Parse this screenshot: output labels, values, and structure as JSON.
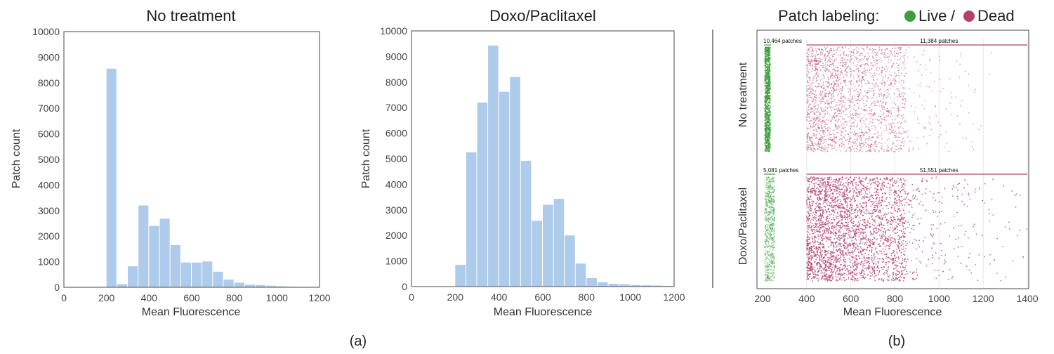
{
  "figure": {
    "caption_a": "(a)",
    "caption_b": "(b)"
  },
  "chart_data": [
    {
      "type": "bar",
      "title": "No treatment",
      "xlabel": "Mean Fluorescence",
      "ylabel": "Patch count",
      "xlim": [
        0,
        1200
      ],
      "ylim": [
        0,
        10000
      ],
      "xticks": [
        0,
        200,
        400,
        600,
        800,
        1000,
        1200
      ],
      "yticks": [
        0,
        1000,
        2000,
        3000,
        4000,
        5000,
        6000,
        7000,
        8000,
        9000,
        10000
      ],
      "bin_width": 50,
      "bin_starts": [
        200,
        250,
        300,
        350,
        400,
        450,
        500,
        550,
        600,
        650,
        700,
        750,
        800,
        850,
        900,
        950,
        1000,
        1050,
        1100
      ],
      "values": [
        8550,
        120,
        820,
        3200,
        2400,
        2680,
        1650,
        970,
        970,
        1010,
        610,
        300,
        180,
        100,
        80,
        60,
        40,
        20,
        10
      ],
      "color": "#aecbeb"
    },
    {
      "type": "bar",
      "title": "Doxo/Paclitaxel",
      "xlabel": "Mean Fluorescence",
      "ylabel": "Patch count",
      "xlim": [
        0,
        1200
      ],
      "ylim": [
        0,
        10000
      ],
      "xticks": [
        0,
        200,
        400,
        600,
        800,
        1000,
        1200
      ],
      "yticks": [
        0,
        1000,
        2000,
        3000,
        4000,
        5000,
        6000,
        7000,
        8000,
        9000,
        10000
      ],
      "bin_width": 50,
      "bin_starts": [
        200,
        250,
        300,
        350,
        400,
        450,
        500,
        550,
        600,
        650,
        700,
        750,
        800,
        850,
        900,
        950,
        1000,
        1050,
        1100,
        1150
      ],
      "values": [
        850,
        5250,
        7200,
        9430,
        7620,
        8200,
        4920,
        2570,
        3200,
        3430,
        2000,
        900,
        330,
        170,
        110,
        90,
        60,
        50,
        40,
        30
      ],
      "color": "#aecbeb"
    },
    {
      "type": "scatter",
      "title": "Patch labeling:",
      "legend": [
        {
          "name": "Live",
          "color": "#3d9e3d"
        },
        {
          "name": "Dead",
          "color": "#b5406e"
        }
      ],
      "xlabel": "Mean Fluorescence",
      "xlim": [
        200,
        1400
      ],
      "xticks": [
        200,
        400,
        600,
        800,
        1000,
        1200,
        1400
      ],
      "grid_x": [
        400,
        600,
        800,
        1000,
        1200,
        1400
      ],
      "rows": [
        {
          "label": "No treatment",
          "live": {
            "x_range": [
              210,
              235
            ],
            "count_label": "10,464 patches"
          },
          "dead": {
            "x_range": [
              400,
              1400
            ],
            "count_label": "11,384 patches"
          }
        },
        {
          "label": "Doxo/Paclitaxel",
          "live": {
            "x_range": [
              210,
              255
            ],
            "count_label": "5,081 patches"
          },
          "dead": {
            "x_range": [
              400,
              1400
            ],
            "count_label": "51,551 patches"
          }
        }
      ]
    }
  ]
}
